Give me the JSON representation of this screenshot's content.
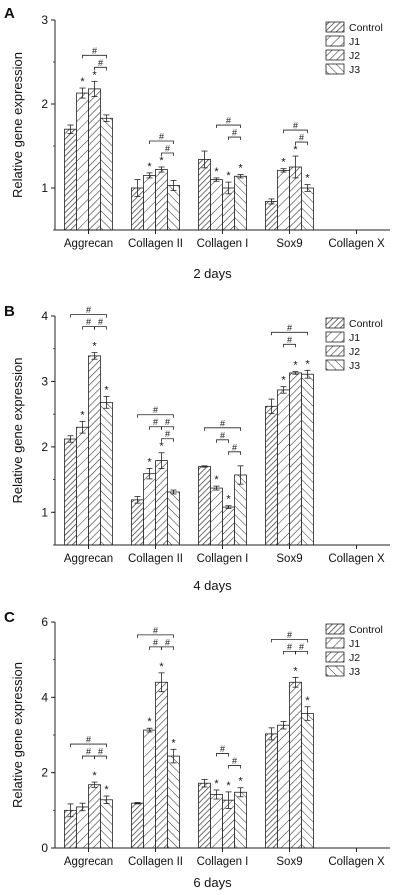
{
  "panel_letters": [
    "A",
    "B",
    "C"
  ],
  "legend": [
    "Control",
    "J1",
    "J2",
    "J3"
  ],
  "chart_data": [
    {
      "type": "bar",
      "panel": "A",
      "xlabel": "2 days",
      "ylabel": "Relative gene expression",
      "categories": [
        "Aggrecan",
        "Collagen II",
        "Collagen I",
        "Sox9",
        "Collagen X"
      ],
      "ylim": [
        0.5,
        3
      ],
      "yticks": [
        1,
        2,
        3
      ],
      "series": [
        {
          "name": "Control",
          "values": [
            1.7,
            1.0,
            1.34,
            0.84,
            null
          ],
          "errors": [
            0.05,
            0.1,
            0.1,
            0.03,
            null
          ]
        },
        {
          "name": "J1",
          "values": [
            2.13,
            1.15,
            1.1,
            1.21,
            null
          ],
          "errors": [
            0.06,
            0.03,
            0.02,
            0.02,
            null
          ]
        },
        {
          "name": "J2",
          "values": [
            2.18,
            1.22,
            1.0,
            1.25,
            null
          ],
          "errors": [
            0.09,
            0.03,
            0.07,
            0.13,
            null
          ]
        },
        {
          "name": "J3",
          "values": [
            1.83,
            1.03,
            1.14,
            1.0,
            null
          ],
          "errors": [
            0.04,
            0.06,
            0.02,
            0.04,
            null
          ]
        }
      ],
      "star_marks": [
        [
          0,
          1
        ],
        [
          0,
          2
        ],
        [
          1,
          1
        ],
        [
          1,
          2
        ],
        [
          2,
          1
        ],
        [
          2,
          2
        ],
        [
          2,
          3
        ],
        [
          3,
          1
        ],
        [
          3,
          2
        ],
        [
          3,
          3
        ]
      ],
      "hash_brackets": [
        {
          "group": 0,
          "from": 1,
          "to": 3,
          "level": 1
        },
        {
          "group": 0,
          "from": 2,
          "to": 3,
          "level": 0
        },
        {
          "group": 1,
          "from": 1,
          "to": 3,
          "level": 1
        },
        {
          "group": 1,
          "from": 2,
          "to": 3,
          "level": 0
        },
        {
          "group": 2,
          "from": 1,
          "to": 3,
          "level": 1
        },
        {
          "group": 2,
          "from": 2,
          "to": 3,
          "level": 0
        },
        {
          "group": 3,
          "from": 1,
          "to": 3,
          "level": 1
        },
        {
          "group": 3,
          "from": 2,
          "to": 3,
          "level": 0
        }
      ],
      "hash_symbol": "#",
      "star_symbol": "*"
    },
    {
      "type": "bar",
      "panel": "B",
      "xlabel": "4 days",
      "ylabel": "Relative gene expression",
      "categories": [
        "Aggrecan",
        "Collagen II",
        "Collagen I",
        "Sox9",
        "Collagen X"
      ],
      "ylim": [
        0.5,
        4
      ],
      "yticks": [
        1,
        2,
        3,
        4
      ],
      "series": [
        {
          "name": "Control",
          "values": [
            2.12,
            1.19,
            1.7,
            2.62,
            null
          ],
          "errors": [
            0.05,
            0.05,
            0.01,
            0.11,
            null
          ]
        },
        {
          "name": "J1",
          "values": [
            2.3,
            1.59,
            1.37,
            2.87,
            null
          ],
          "errors": [
            0.09,
            0.08,
            0.03,
            0.05,
            null
          ]
        },
        {
          "name": "J2",
          "values": [
            3.39,
            1.79,
            1.08,
            3.13,
            null
          ],
          "errors": [
            0.05,
            0.12,
            0.02,
            0.02,
            null
          ]
        },
        {
          "name": "J3",
          "values": [
            2.68,
            1.31,
            1.57,
            3.11,
            null
          ],
          "errors": [
            0.09,
            0.03,
            0.14,
            0.06,
            null
          ]
        }
      ],
      "star_marks": [
        [
          0,
          1
        ],
        [
          0,
          2
        ],
        [
          0,
          3
        ],
        [
          1,
          1
        ],
        [
          1,
          2
        ],
        [
          2,
          1
        ],
        [
          2,
          2
        ],
        [
          3,
          1
        ],
        [
          3,
          2
        ],
        [
          3,
          3
        ]
      ],
      "hash_brackets": [
        {
          "group": 0,
          "from": 0,
          "to": 3,
          "level": 2
        },
        {
          "group": 0,
          "from": 1,
          "to": 2,
          "level": 1
        },
        {
          "group": 0,
          "from": 2,
          "to": 3,
          "level": 1
        },
        {
          "group": 1,
          "from": 0,
          "to": 3,
          "level": 2
        },
        {
          "group": 1,
          "from": 1,
          "to": 2,
          "level": 1
        },
        {
          "group": 1,
          "from": 2,
          "to": 3,
          "level": 1
        },
        {
          "group": 1,
          "from": 2,
          "to": 3,
          "level": 0
        },
        {
          "group": 2,
          "from": 0,
          "to": 3,
          "level": 2
        },
        {
          "group": 2,
          "from": 1,
          "to": 2,
          "level": 1
        },
        {
          "group": 2,
          "from": 2,
          "to": 3,
          "level": 0
        },
        {
          "group": 3,
          "from": 0,
          "to": 3,
          "level": 2
        },
        {
          "group": 3,
          "from": 1,
          "to": 2,
          "level": 1
        }
      ],
      "hash_symbol": "#",
      "star_symbol": "*"
    },
    {
      "type": "bar",
      "panel": "C",
      "xlabel": "6 days",
      "ylabel": "Relative gene expression",
      "categories": [
        "Aggrecan",
        "Collagen II",
        "Collagen I",
        "Sox9",
        "Collagen X"
      ],
      "ylim": [
        0,
        6
      ],
      "yticks": [
        0,
        2,
        4,
        6
      ],
      "series": [
        {
          "name": "Control",
          "values": [
            1.0,
            1.19,
            1.72,
            3.03,
            null
          ],
          "errors": [
            0.17,
            0.02,
            0.1,
            0.16,
            null
          ]
        },
        {
          "name": "J1",
          "values": [
            1.09,
            3.13,
            1.42,
            3.26,
            null
          ],
          "errors": [
            0.1,
            0.05,
            0.12,
            0.1,
            null
          ]
        },
        {
          "name": "J2",
          "values": [
            1.68,
            4.4,
            1.27,
            4.4,
            null
          ],
          "errors": [
            0.07,
            0.25,
            0.22,
            0.13,
            null
          ]
        },
        {
          "name": "J3",
          "values": [
            1.28,
            2.44,
            1.48,
            3.57,
            null
          ],
          "errors": [
            0.1,
            0.18,
            0.12,
            0.18,
            null
          ]
        }
      ],
      "star_marks": [
        [
          0,
          2
        ],
        [
          0,
          3
        ],
        [
          1,
          1
        ],
        [
          1,
          2
        ],
        [
          1,
          3
        ],
        [
          2,
          1
        ],
        [
          2,
          2
        ],
        [
          2,
          3
        ],
        [
          3,
          2
        ],
        [
          3,
          3
        ]
      ],
      "hash_brackets": [
        {
          "group": 0,
          "from": 0,
          "to": 3,
          "level": 2
        },
        {
          "group": 0,
          "from": 1,
          "to": 2,
          "level": 1
        },
        {
          "group": 0,
          "from": 2,
          "to": 3,
          "level": 1
        },
        {
          "group": 1,
          "from": 0,
          "to": 3,
          "level": 2
        },
        {
          "group": 1,
          "from": 1,
          "to": 2,
          "level": 1
        },
        {
          "group": 1,
          "from": 2,
          "to": 3,
          "level": 1
        },
        {
          "group": 2,
          "from": 1,
          "to": 2,
          "level": 1
        },
        {
          "group": 2,
          "from": 2,
          "to": 3,
          "level": 0
        },
        {
          "group": 3,
          "from": 0,
          "to": 3,
          "level": 2
        },
        {
          "group": 3,
          "from": 1,
          "to": 2,
          "level": 1
        },
        {
          "group": 3,
          "from": 2,
          "to": 3,
          "level": 1
        }
      ],
      "hash_symbol": "#",
      "star_symbol": "*"
    }
  ]
}
